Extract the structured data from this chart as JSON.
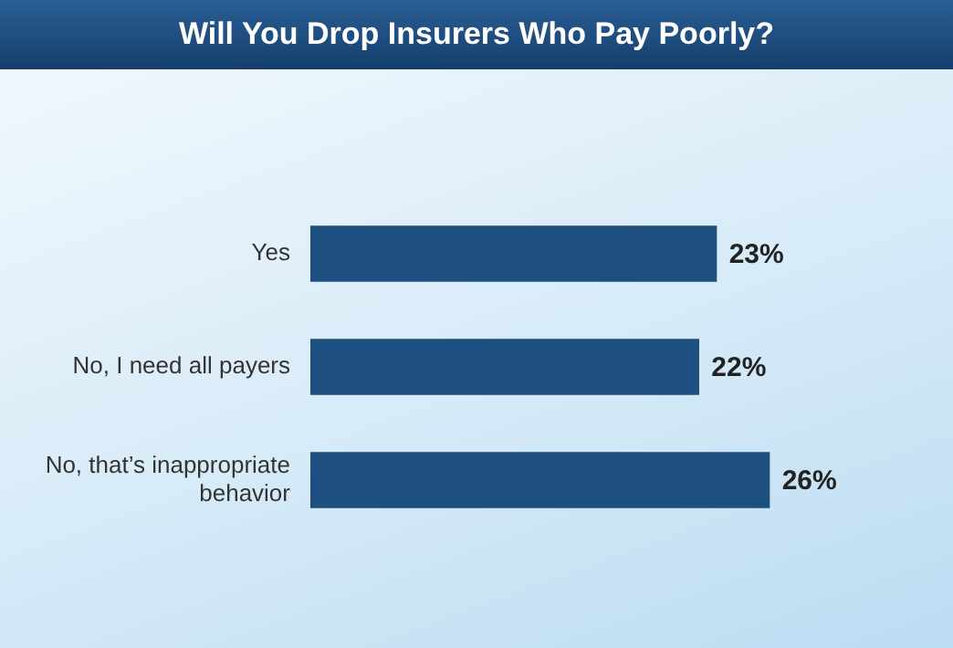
{
  "chart_data": {
    "type": "bar",
    "title": "Will You Drop Insurers Who Pay Poorly?",
    "orientation": "horizontal",
    "categories": [
      "Yes",
      "No, I need all payers",
      "No, that’s inappropriate behavior"
    ],
    "values": [
      23,
      22,
      26
    ],
    "value_labels": [
      "23%",
      "22%",
      "26%"
    ],
    "color": "#1d4f80"
  }
}
